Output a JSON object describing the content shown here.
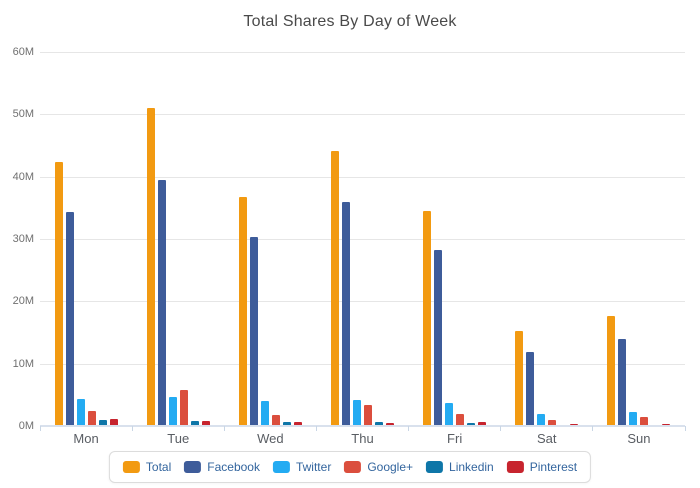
{
  "title": "Total Shares By Day of Week",
  "axis": {
    "ytick_labels": [
      "0M",
      "10M",
      "20M",
      "30M",
      "40M",
      "50M",
      "60M"
    ],
    "xtick_labels": [
      "Mon",
      "Tue",
      "Wed",
      "Thu",
      "Fri",
      "Sat",
      "Sun"
    ]
  },
  "legend": {
    "items": [
      "Total",
      "Facebook",
      "Twitter",
      "Google+",
      "Linkedin",
      "Pinterest"
    ]
  },
  "colors": {
    "grid": "#e6e6e6",
    "axis_line": "#d9e1ed",
    "title_text": "#4a4a4a",
    "legend_text": "#33659e"
  },
  "chart_data": {
    "type": "bar",
    "title": "Total Shares By Day of Week",
    "unit": "millions of shares",
    "categories": [
      "Mon",
      "Tue",
      "Wed",
      "Thu",
      "Fri",
      "Sat",
      "Sun"
    ],
    "series": [
      {
        "name": "Total",
        "color": "#F29A11",
        "values": [
          42.3,
          51.0,
          36.8,
          44.2,
          34.5,
          15.2,
          17.6
        ]
      },
      {
        "name": "Facebook",
        "color": "#3E5C9A",
        "values": [
          34.3,
          39.5,
          30.3,
          36.0,
          28.3,
          11.8,
          13.9
        ]
      },
      {
        "name": "Twitter",
        "color": "#23ABF2",
        "values": [
          4.4,
          4.7,
          4.0,
          4.1,
          3.7,
          2.0,
          2.2
        ]
      },
      {
        "name": "Google+",
        "color": "#DB4E3D",
        "values": [
          2.4,
          5.8,
          1.7,
          3.3,
          1.9,
          1.0,
          1.4
        ]
      },
      {
        "name": "Linkedin",
        "color": "#0E76A8",
        "values": [
          0.9,
          0.8,
          0.6,
          0.7,
          0.5,
          0.1,
          0.1
        ]
      },
      {
        "name": "Pinterest",
        "color": "#C7242E",
        "values": [
          1.1,
          0.8,
          0.7,
          0.5,
          0.6,
          0.3,
          0.3
        ]
      }
    ],
    "ylim": [
      0,
      60
    ],
    "ytick_step": 10,
    "grid": true,
    "legend_position": "bottom"
  }
}
